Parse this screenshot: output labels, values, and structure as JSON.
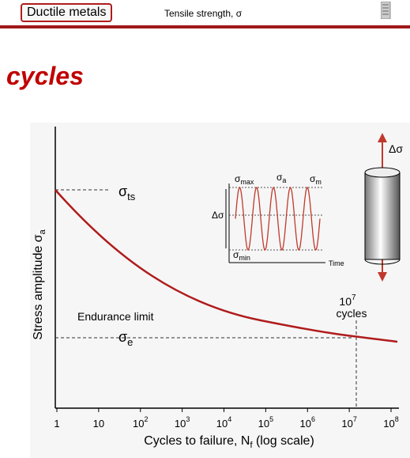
{
  "toolbar": {
    "button": "Ductile metals",
    "text": "Tensile strength, σ"
  },
  "heading": "cycles",
  "figure": {
    "y_axis_label": {
      "text": "Stress amplitude σ",
      "sub": "a"
    },
    "x_axis_label": {
      "text": "Cycles to failure, N",
      "sub": "f",
      "suffix": " (log scale)"
    },
    "x_ticks": [
      {
        "base": "1"
      },
      {
        "base": "10"
      },
      {
        "base": "10",
        "exp": "2"
      },
      {
        "base": "10",
        "exp": "3"
      },
      {
        "base": "10",
        "exp": "4"
      },
      {
        "base": "10",
        "exp": "5"
      },
      {
        "base": "10",
        "exp": "6"
      },
      {
        "base": "10",
        "exp": "7"
      },
      {
        "base": "10",
        "exp": "8"
      }
    ],
    "sigma_ts": {
      "symbol": "σ",
      "sub": "ts"
    },
    "endurance_limit": "Endurance limit",
    "sigma_e": {
      "symbol": "σ",
      "sub": "e"
    },
    "cycles_note": {
      "base": "10",
      "exp": "7",
      "text": "cycles"
    },
    "inset": {
      "sigma_max": {
        "symbol": "σ",
        "sub": "max"
      },
      "sigma_a": {
        "symbol": "σ",
        "sub": "a"
      },
      "sigma_m": {
        "symbol": "σ",
        "sub": "m"
      },
      "delta_sigma": "Δσ",
      "sigma_min": {
        "symbol": "σ",
        "sub": "min"
      },
      "time": "Time"
    },
    "load_label": "Δσ"
  }
}
